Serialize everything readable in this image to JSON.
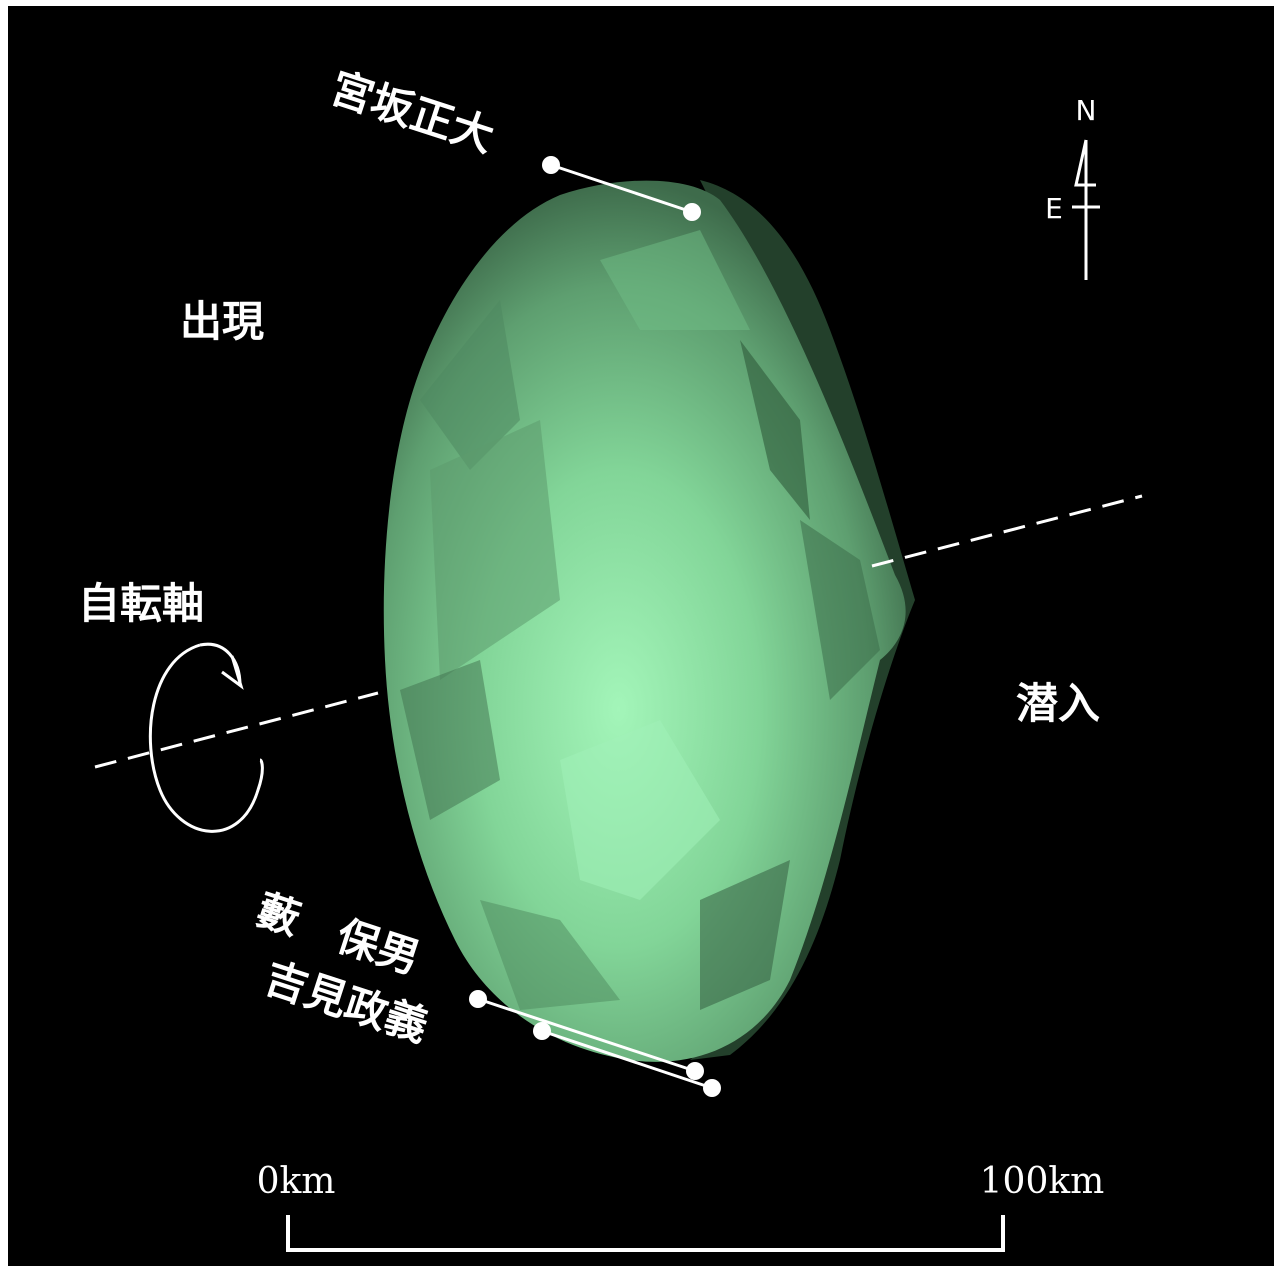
{
  "labels": {
    "appearance": "出現",
    "disappearance": "潜入",
    "rotation_axis": "自転軸",
    "observer_top": "宮坂正大",
    "observer_bottom_1": "藪　保男",
    "observer_bottom_2": "吉見政義"
  },
  "compass": {
    "north": "N",
    "east": "E"
  },
  "scale_bar": {
    "start_label": "0km",
    "end_label": "100km"
  },
  "colors": {
    "background": "#000000",
    "asteroid_light": "#9ef0b4",
    "asteroid_mid": "#72c08a",
    "asteroid_dark": "#2b4a33",
    "chords": "#ffffff"
  }
}
